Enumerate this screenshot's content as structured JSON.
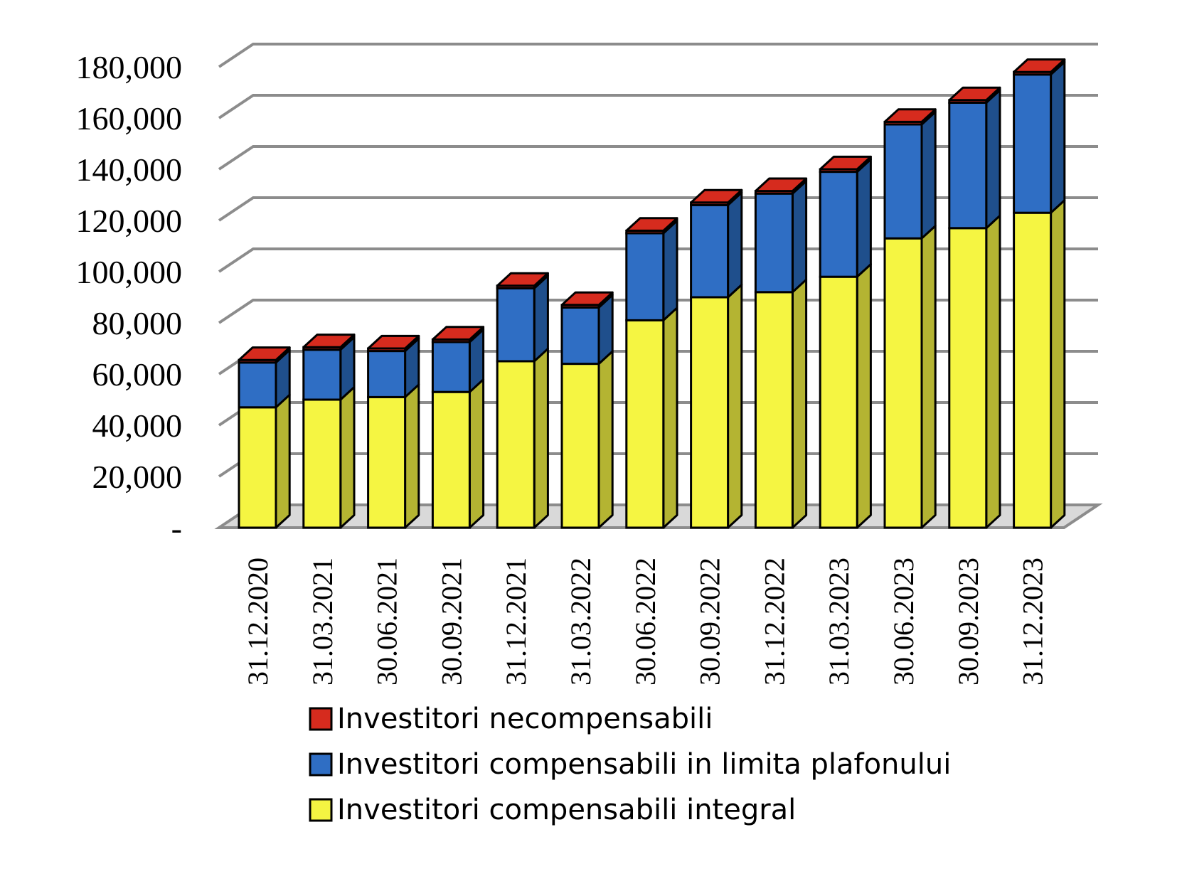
{
  "chart_data": {
    "type": "bar",
    "stacked": true,
    "three_d": true,
    "grid": true,
    "legend_position": "bottom",
    "ylim": [
      0,
      180000
    ],
    "yticks": [
      {
        "value": 0,
        "label": "-"
      },
      {
        "value": 20000,
        "label": "20,000"
      },
      {
        "value": 40000,
        "label": "40,000"
      },
      {
        "value": 60000,
        "label": "60,000"
      },
      {
        "value": 80000,
        "label": "80,000"
      },
      {
        "value": 100000,
        "label": "100,000"
      },
      {
        "value": 120000,
        "label": "120,000"
      },
      {
        "value": 140000,
        "label": "140,000"
      },
      {
        "value": 160000,
        "label": "160,000"
      },
      {
        "value": 180000,
        "label": "180,000"
      }
    ],
    "categories": [
      "31.12.2020",
      "31.03.2021",
      "30.06.2021",
      "30.09.2021",
      "31.12.2021",
      "31.03.2022",
      "30.06.2022",
      "30.09.2022",
      "31.12.2022",
      "31.03.2023",
      "30.06.2023",
      "30.09.2023",
      "31.12.2023"
    ],
    "series": [
      {
        "name": "Investitori compensabili integral",
        "color": "#f5f542",
        "side_color": "#b4b432",
        "values": [
          47000,
          50000,
          51000,
          53000,
          65000,
          64000,
          81000,
          90000,
          92000,
          98000,
          113000,
          117000,
          123000
        ]
      },
      {
        "name": "Investitori compensabili in limita plafonului",
        "color": "#2f6ec4",
        "side_color": "#1f4f8c",
        "values": [
          17500,
          19500,
          18000,
          19500,
          28500,
          22000,
          34000,
          36000,
          38500,
          41000,
          44500,
          49000,
          54000
        ]
      },
      {
        "name": "Investitori necompensabili",
        "color": "#d62b1e",
        "side_color": "#9a1d14",
        "values": [
          1000,
          1000,
          1000,
          1000,
          1000,
          1000,
          1000,
          1000,
          1000,
          1000,
          1000,
          1000,
          1000
        ]
      }
    ],
    "legend_order": [
      "Investitori necompensabili",
      "Investitori compensabili in limita plafonului",
      "Investitori compensabili integral"
    ]
  }
}
